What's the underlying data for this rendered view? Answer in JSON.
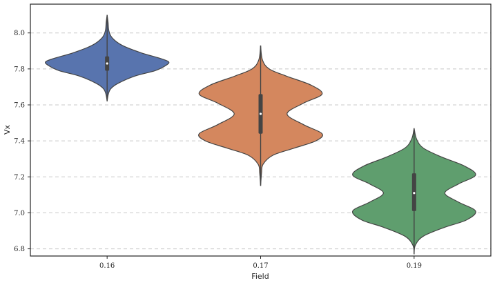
{
  "chart_data": {
    "type": "violin",
    "xlabel": "Field",
    "ylabel": "Vx",
    "ylim": [
      6.76,
      8.16
    ],
    "yticks": [
      "6.8",
      "7.0",
      "7.2",
      "7.4",
      "7.6",
      "7.8",
      "8.0"
    ],
    "grid": "horizontal dashed",
    "categories": [
      "0.16",
      "0.17",
      "0.19"
    ],
    "violins": [
      {
        "category": "0.16",
        "color": "#5874ae",
        "min": 7.62,
        "max": 8.1,
        "q1": 7.79,
        "median": 7.83,
        "q3": 7.87,
        "profile": [
          [
            7.62,
            0.0
          ],
          [
            7.66,
            0.02
          ],
          [
            7.69,
            0.06
          ],
          [
            7.72,
            0.18
          ],
          [
            7.76,
            0.45
          ],
          [
            7.79,
            0.78
          ],
          [
            7.82,
            0.96
          ],
          [
            7.84,
            1.0
          ],
          [
            7.86,
            0.85
          ],
          [
            7.89,
            0.55
          ],
          [
            7.93,
            0.25
          ],
          [
            7.97,
            0.09
          ],
          [
            8.01,
            0.03
          ],
          [
            8.06,
            0.015
          ],
          [
            8.1,
            0.0
          ]
        ]
      },
      {
        "category": "0.17",
        "color": "#d4875e",
        "min": 7.15,
        "max": 7.93,
        "q1": 7.44,
        "median": 7.55,
        "q3": 7.66,
        "profile": [
          [
            7.15,
            0.0
          ],
          [
            7.22,
            0.015
          ],
          [
            7.27,
            0.04
          ],
          [
            7.32,
            0.2
          ],
          [
            7.36,
            0.55
          ],
          [
            7.4,
            0.9
          ],
          [
            7.44,
            1.0
          ],
          [
            7.49,
            0.7
          ],
          [
            7.55,
            0.43
          ],
          [
            7.61,
            0.7
          ],
          [
            7.66,
            1.0
          ],
          [
            7.71,
            0.82
          ],
          [
            7.76,
            0.42
          ],
          [
            7.8,
            0.14
          ],
          [
            7.85,
            0.03
          ],
          [
            7.93,
            0.0
          ]
        ]
      },
      {
        "category": "0.19",
        "color": "#5f9e6e",
        "min": 6.77,
        "max": 7.47,
        "q1": 7.01,
        "median": 7.11,
        "q3": 7.22,
        "profile": [
          [
            6.77,
            0.0
          ],
          [
            6.82,
            0.02
          ],
          [
            6.87,
            0.15
          ],
          [
            6.92,
            0.5
          ],
          [
            6.96,
            0.85
          ],
          [
            7.01,
            1.0
          ],
          [
            7.06,
            0.72
          ],
          [
            7.11,
            0.5
          ],
          [
            7.16,
            0.72
          ],
          [
            7.21,
            1.0
          ],
          [
            7.26,
            0.82
          ],
          [
            7.31,
            0.45
          ],
          [
            7.36,
            0.15
          ],
          [
            7.41,
            0.04
          ],
          [
            7.47,
            0.0
          ]
        ]
      }
    ]
  }
}
